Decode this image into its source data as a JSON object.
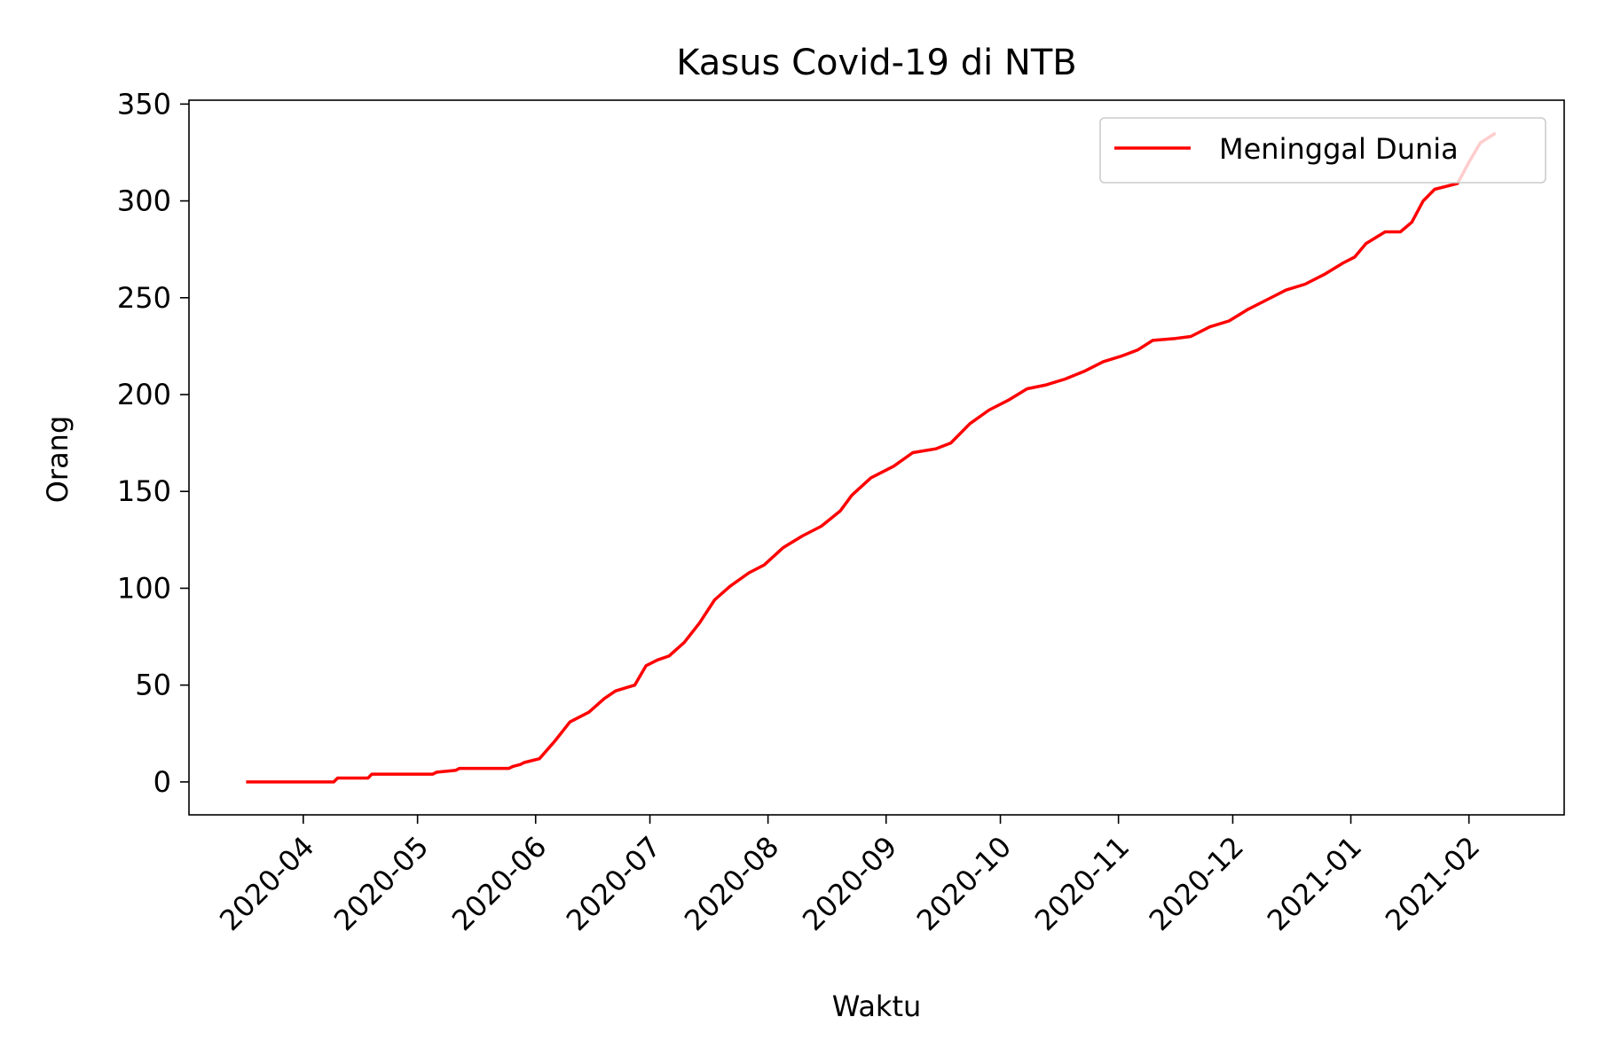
{
  "chart_data": {
    "type": "line",
    "title": "Kasus Covid-19 di NTB",
    "xlabel": "Waktu",
    "ylabel": "Orang",
    "ylim": [
      -17,
      352
    ],
    "xlim": [
      "2020-03-02",
      "2021-02-26"
    ],
    "grid": false,
    "legend_position": "top-right",
    "yticks": [
      0,
      50,
      100,
      150,
      200,
      250,
      300,
      350
    ],
    "xticks": [
      "2020-04-01",
      "2020-05-01",
      "2020-06-01",
      "2020-07-01",
      "2020-08-01",
      "2020-09-01",
      "2020-10-01",
      "2020-11-01",
      "2020-12-01",
      "2021-01-01",
      "2021-02-01"
    ],
    "xtick_labels": [
      "2020-04",
      "2020-05",
      "2020-06",
      "2020-07",
      "2020-08",
      "2020-09",
      "2020-10",
      "2020-11",
      "2020-12",
      "2021-01",
      "2021-02"
    ],
    "series": [
      {
        "name": "Meninggal Dunia",
        "color": "#ff0000",
        "x": [
          "2020-03-17",
          "2020-04-09",
          "2020-04-10",
          "2020-04-18",
          "2020-04-19",
          "2020-05-05",
          "2020-05-06",
          "2020-05-11",
          "2020-05-12",
          "2020-05-25",
          "2020-05-26",
          "2020-05-28",
          "2020-05-29",
          "2020-06-02",
          "2020-06-06",
          "2020-06-10",
          "2020-06-15",
          "2020-06-19",
          "2020-06-22",
          "2020-06-27",
          "2020-06-30",
          "2020-07-03",
          "2020-07-06",
          "2020-07-10",
          "2020-07-14",
          "2020-07-18",
          "2020-07-22",
          "2020-07-27",
          "2020-07-31",
          "2020-08-05",
          "2020-08-10",
          "2020-08-15",
          "2020-08-20",
          "2020-08-23",
          "2020-08-28",
          "2020-09-03",
          "2020-09-08",
          "2020-09-14",
          "2020-09-18",
          "2020-09-23",
          "2020-09-28",
          "2020-10-03",
          "2020-10-08",
          "2020-10-13",
          "2020-10-18",
          "2020-10-23",
          "2020-10-28",
          "2020-11-02",
          "2020-11-06",
          "2020-11-10",
          "2020-11-16",
          "2020-11-20",
          "2020-11-25",
          "2020-11-30",
          "2020-12-05",
          "2020-12-10",
          "2020-12-15",
          "2020-12-20",
          "2020-12-25",
          "2020-12-30",
          "2021-01-02",
          "2021-01-05",
          "2021-01-10",
          "2021-01-14",
          "2021-01-17",
          "2021-01-20",
          "2021-01-23",
          "2021-01-29",
          "2021-02-01",
          "2021-02-04",
          "2021-02-08"
        ],
        "values": [
          0,
          0,
          2,
          2,
          4,
          4,
          5,
          6,
          7,
          7,
          8,
          9,
          10,
          12,
          21,
          31,
          36,
          43,
          47,
          50,
          60,
          63,
          65,
          72,
          82,
          94,
          101,
          108,
          112,
          121,
          127,
          132,
          140,
          148,
          157,
          163,
          170,
          172,
          175,
          185,
          192,
          197,
          203,
          205,
          208,
          212,
          217,
          220,
          223,
          228,
          229,
          230,
          235,
          238,
          244,
          249,
          254,
          257,
          262,
          268,
          271,
          278,
          284,
          284,
          289,
          300,
          306,
          309,
          320,
          330,
          335
        ]
      }
    ]
  }
}
